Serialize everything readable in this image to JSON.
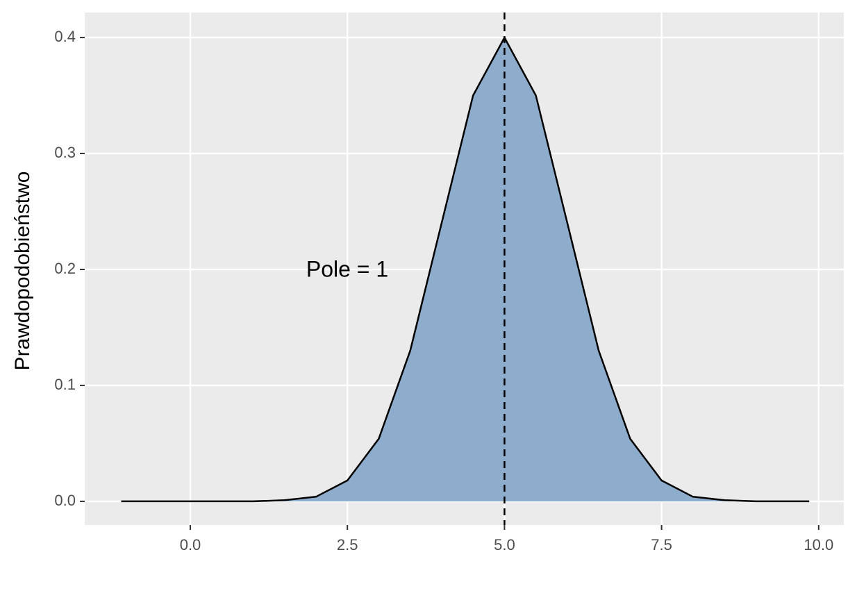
{
  "chart_data": {
    "type": "area",
    "y_label": "Prawdopodobieństwo",
    "annotation": "Pole = 1",
    "x": [
      -1.1,
      0,
      1,
      1.5,
      2,
      2.5,
      3,
      3.5,
      4,
      4.5,
      5,
      5.5,
      6,
      6.5,
      7,
      7.5,
      8,
      8.5,
      9,
      9.85
    ],
    "values": [
      0,
      0,
      0,
      0.001,
      0.004,
      0.018,
      0.054,
      0.13,
      0.24,
      0.35,
      0.4,
      0.35,
      0.24,
      0.13,
      0.054,
      0.018,
      0.004,
      0.001,
      0,
      0
    ],
    "color": "#8eaccb",
    "line_color": "#000000",
    "vline": 5,
    "xlim": [
      -1.68,
      10.4
    ],
    "ylim": [
      -0.0204,
      0.4216
    ],
    "xticks": [
      {
        "value": 0,
        "label": "0.0"
      },
      2.5,
      {
        "value": 5,
        "label": "5.0"
      },
      7.5,
      {
        "value": 10,
        "label": "10.0"
      }
    ],
    "yticks": [
      {
        "value": 0,
        "label": "0.0"
      },
      0.1,
      0.2,
      0.3,
      0.4
    ],
    "grid": true
  }
}
